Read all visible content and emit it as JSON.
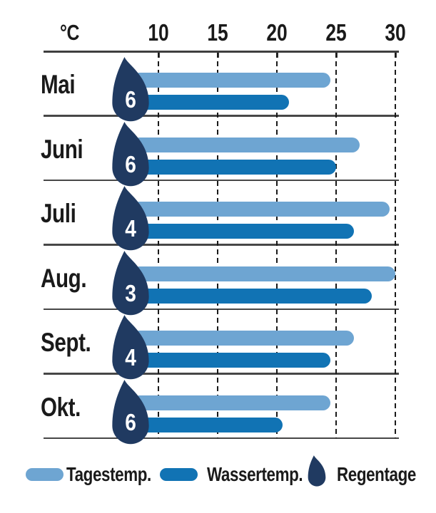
{
  "chart_data": {
    "type": "bar",
    "orientation": "horizontal",
    "title": "",
    "xlabel": "°C",
    "categories": [
      "Mai",
      "Juni",
      "Juli",
      "Aug.",
      "Sept.",
      "Okt."
    ],
    "series": [
      {
        "name": "Tagestemp.",
        "color": "#6ea5d2",
        "values": [
          24.5,
          27,
          29.5,
          30,
          26.5,
          24.5
        ]
      },
      {
        "name": "Wassertemp.",
        "color": "#1173b4",
        "values": [
          21,
          25,
          26.5,
          28,
          24.5,
          20.5
        ]
      }
    ],
    "rain_days": {
      "name": "Regentage",
      "values": [
        6,
        6,
        4,
        3,
        4,
        6
      ]
    },
    "x_ticks": [
      10,
      15,
      20,
      25,
      30
    ],
    "xlim": [
      10,
      30
    ],
    "grid": "dashed-vertical",
    "legend_position": "bottom"
  },
  "legend": {
    "day_label": "Tagestemp.",
    "water_label": "Wassertemp.",
    "rain_label": "Regentage"
  },
  "colors": {
    "day_bar": "#6ea5d2",
    "water_bar": "#1173b4",
    "rain_drop": "#203a61",
    "axis_line": "#3f3f3f",
    "text": "#1a1a1a"
  }
}
